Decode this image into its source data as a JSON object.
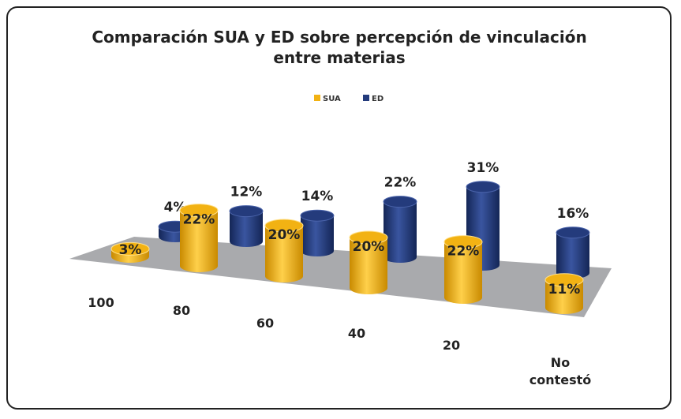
{
  "chart_data": {
    "type": "bar3d",
    "title": "Comparación SUA y ED sobre percepción de vinculación entre materias",
    "categories": [
      "100",
      "80",
      "60",
      "40",
      "20",
      "No contestó"
    ],
    "series": [
      {
        "name": "SUA",
        "color": "#f2b213",
        "values": [
          3,
          22,
          20,
          20,
          22,
          11
        ],
        "value_labels": [
          "3%",
          "22%",
          "20%",
          "20%",
          "22%",
          "11%"
        ]
      },
      {
        "name": "ED",
        "color": "#243b7c",
        "values": [
          4,
          12,
          14,
          22,
          31,
          16
        ],
        "value_labels": [
          "4%",
          "12%",
          "14%",
          "22%",
          "31%",
          "16%"
        ]
      }
    ]
  }
}
